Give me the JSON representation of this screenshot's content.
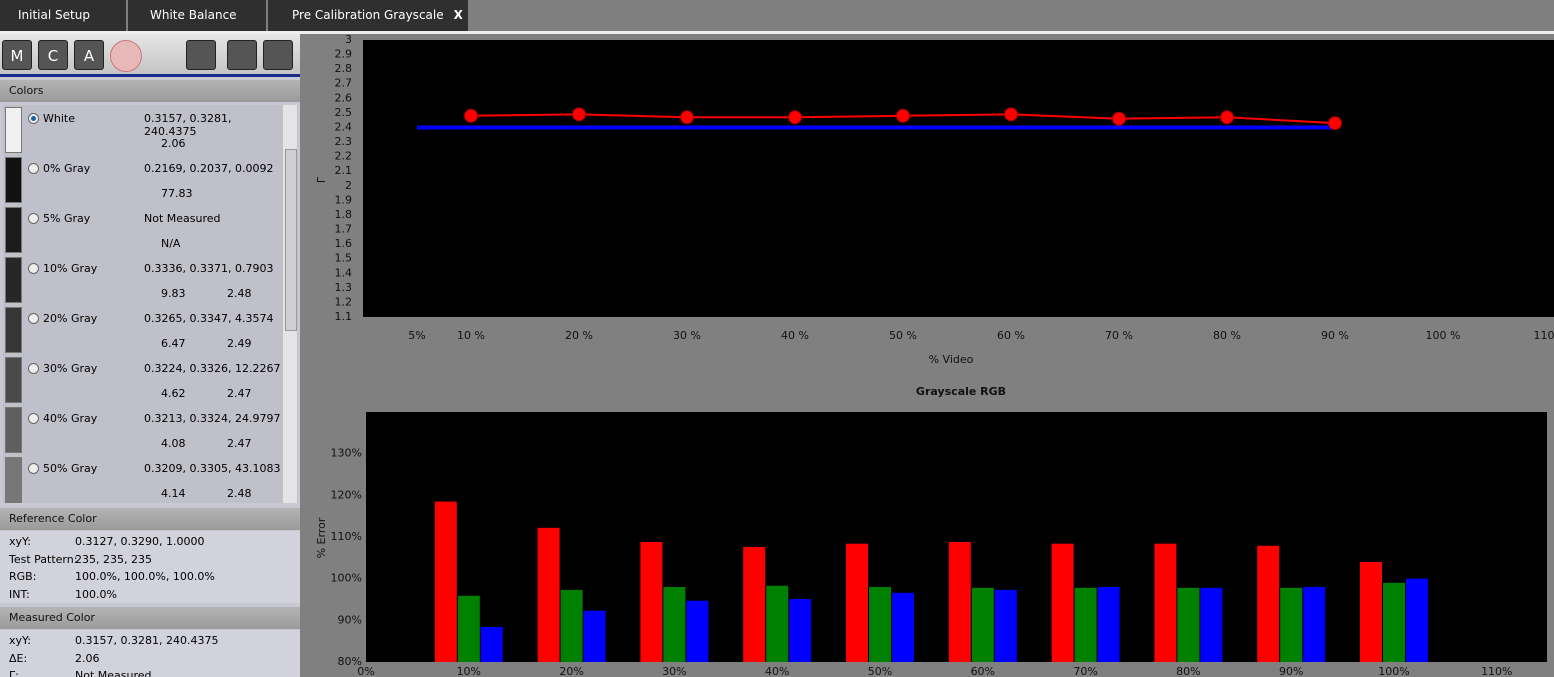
{
  "tabs": [
    "Initial Setup",
    "White Balance",
    "Pre Calibration Grayscale"
  ],
  "close_tab": "X",
  "toolbar": [
    "M",
    "C",
    "A"
  ],
  "colors": {
    "title": "Colors",
    "items": [
      {
        "name": "White",
        "xyY": "0.3157, 0.3281, 240.4375",
        "details": [
          "2.06"
        ]
      },
      {
        "name": "0% Gray",
        "xyY": "0.2169, 0.2037, 0.0092",
        "details": [
          "77.83"
        ]
      },
      {
        "name": "5% Gray",
        "xyY": "Not Measured",
        "details": [
          "N/A"
        ]
      },
      {
        "name": "10% Gray",
        "xyY": "0.3336, 0.3371, 0.7903",
        "details": [
          "9.83",
          "2.48"
        ]
      },
      {
        "name": "20% Gray",
        "xyY": "0.3265, 0.3347, 4.3574",
        "details": [
          "6.47",
          "2.49"
        ]
      },
      {
        "name": "30% Gray",
        "xyY": "0.3224, 0.3326, 12.2267",
        "details": [
          "4.62",
          "2.47"
        ]
      },
      {
        "name": "40% Gray",
        "xyY": "0.3213, 0.3324, 24.9797",
        "details": [
          "4.08",
          "2.47"
        ]
      },
      {
        "name": "50% Gray",
        "xyY": "0.3209, 0.3305, 43.1083",
        "details": [
          "4.14",
          "2.48"
        ]
      }
    ]
  },
  "reference_color": {
    "title": "Reference Color",
    "rows": [
      [
        "xyY:",
        "0.3127, 0.3290, 1.0000"
      ],
      [
        "Test Pattern:",
        "235, 235, 235"
      ],
      [
        "RGB:",
        "100.0%, 100.0%, 100.0%"
      ],
      [
        "INT:",
        "100.0%"
      ]
    ]
  },
  "measured_color": {
    "title": "Measured Color",
    "rows": [
      [
        "xyY:",
        "0.3157, 0.3281, 240.4375"
      ],
      [
        "ΔE:",
        "2.06"
      ],
      [
        "Γ:",
        "Not Measured"
      ]
    ]
  },
  "chart_data": [
    {
      "type": "line",
      "ylabel": "Γ",
      "xlabel": "% Video",
      "xlim": [
        0,
        110
      ],
      "ylim": [
        1.1,
        3
      ],
      "yticks": [
        1.1,
        1.2,
        1.3,
        1.4,
        1.5,
        1.6,
        1.7,
        1.8,
        1.9,
        2,
        2.1,
        2.2,
        2.3,
        2.4,
        2.5,
        2.6,
        2.7,
        2.8,
        2.9,
        3
      ],
      "xticks": [
        {
          "value": 5,
          "label": "5%"
        },
        {
          "value": 10,
          "label": "10 %"
        },
        {
          "value": 20,
          "label": "20 %"
        },
        {
          "value": 30,
          "label": "30 %"
        },
        {
          "value": 40,
          "label": "40 %"
        },
        {
          "value": 50,
          "label": "50 %"
        },
        {
          "value": 60,
          "label": "60 %"
        },
        {
          "value": 70,
          "label": "70 %"
        },
        {
          "value": 80,
          "label": "80 %"
        },
        {
          "value": 90,
          "label": "90 %"
        },
        {
          "value": 100,
          "label": "100 %"
        },
        {
          "value": 110,
          "label": "110 %"
        }
      ],
      "series": [
        {
          "color": "#0000ff",
          "x": [
            5,
            90
          ],
          "values": [
            2.4,
            2.4
          ]
        },
        {
          "color": "#ff0000",
          "x": [
            10,
            20,
            30,
            40,
            50,
            60,
            70,
            80,
            90
          ],
          "values": [
            2.48,
            2.49,
            2.47,
            2.47,
            2.48,
            2.49,
            2.46,
            2.47,
            2.43
          ],
          "markers": true
        }
      ]
    },
    {
      "type": "bar",
      "title": "Grayscale RGB",
      "ylabel": "% Error",
      "categories": [
        "0%",
        "10%",
        "20%",
        "30%",
        "40%",
        "50%",
        "60%",
        "70%",
        "80%",
        "90%",
        "100%",
        "110%"
      ],
      "ylim": [
        80,
        140
      ],
      "yticks": [
        {
          "value": 80,
          "label": "80%"
        },
        {
          "value": 90,
          "label": "90%"
        },
        {
          "value": 100,
          "label": "100%"
        },
        {
          "value": 110,
          "label": "110%"
        },
        {
          "value": 120,
          "label": "120%"
        },
        {
          "value": 130,
          "label": "130%"
        }
      ],
      "series": [
        {
          "color": "#ff0000",
          "values": [
            null,
            118.5,
            112.2,
            108.8,
            107.6,
            108.4,
            108.8,
            108.4,
            108.4,
            107.9,
            104.0,
            null
          ]
        },
        {
          "color": "#008000",
          "values": [
            null,
            95.9,
            97.3,
            98.0,
            98.3,
            98.0,
            97.8,
            97.8,
            97.8,
            97.8,
            99.0,
            null
          ]
        },
        {
          "color": "#0000ff",
          "values": [
            null,
            88.4,
            92.3,
            94.7,
            95.1,
            96.6,
            97.3,
            98.0,
            97.8,
            98.0,
            100.0,
            null
          ]
        }
      ]
    }
  ]
}
